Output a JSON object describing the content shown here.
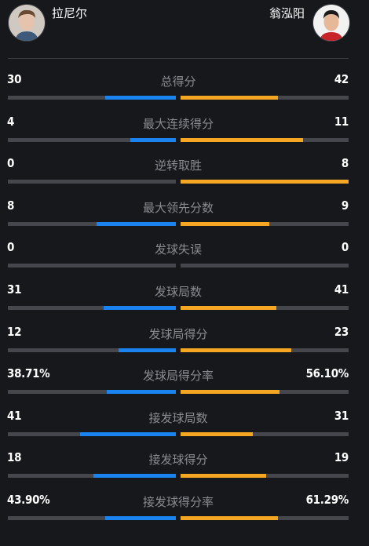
{
  "players": {
    "left": {
      "name": "拉尼尔"
    },
    "right": {
      "name": "翁泓阳"
    }
  },
  "colors": {
    "left_fill": "#1a83f0",
    "right_fill": "#f5a623",
    "track": "#46474c"
  },
  "stats": [
    {
      "label": "总得分",
      "left": "30",
      "right": "42",
      "left_pct": 42,
      "right_pct": 58
    },
    {
      "label": "最大连续得分",
      "left": "4",
      "right": "11",
      "left_pct": 27,
      "right_pct": 73
    },
    {
      "label": "逆转取胜",
      "left": "0",
      "right": "8",
      "left_pct": 0,
      "right_pct": 100
    },
    {
      "label": "最大领先分数",
      "left": "8",
      "right": "9",
      "left_pct": 47,
      "right_pct": 53
    },
    {
      "label": "发球失误",
      "left": "0",
      "right": "0",
      "left_pct": 0,
      "right_pct": 0
    },
    {
      "label": "发球局数",
      "left": "31",
      "right": "41",
      "left_pct": 43,
      "right_pct": 57
    },
    {
      "label": "发球局得分",
      "left": "12",
      "right": "23",
      "left_pct": 34,
      "right_pct": 66
    },
    {
      "label": "发球局得分率",
      "left": "38.71%",
      "right": "56.10%",
      "left_pct": 41,
      "right_pct": 59
    },
    {
      "label": "接发球局数",
      "left": "41",
      "right": "31",
      "left_pct": 57,
      "right_pct": 43
    },
    {
      "label": "接发球得分",
      "left": "18",
      "right": "19",
      "left_pct": 49,
      "right_pct": 51
    },
    {
      "label": "接发球得分率",
      "left": "43.90%",
      "right": "61.29%",
      "left_pct": 42,
      "right_pct": 58
    }
  ]
}
